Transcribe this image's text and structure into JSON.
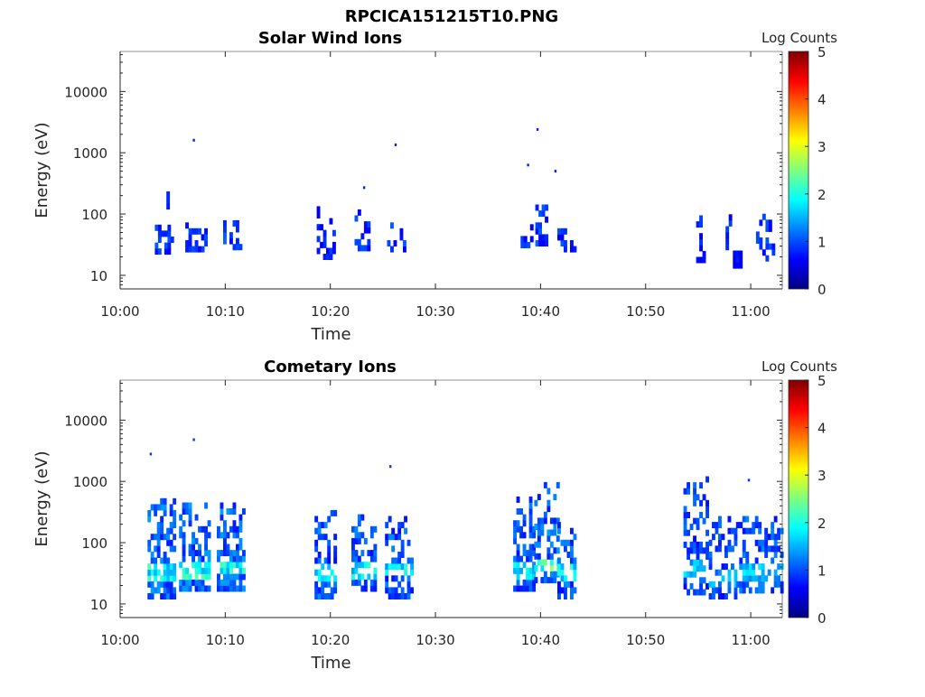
{
  "figure_title": "RPCICA151215T10.PNG",
  "colormap": [
    "#00007f",
    "#0000ff",
    "#007fff",
    "#00ffff",
    "#7fff7f",
    "#ffff00",
    "#ff7f00",
    "#ff0000",
    "#7f0000"
  ],
  "chart_data": [
    {
      "type": "heatmap",
      "title": "Solar Wind Ions",
      "xlabel": "Time",
      "ylabel": "Energy (eV)",
      "x_ticks": [
        "10:00",
        "10:10",
        "10:20",
        "10:30",
        "10:40",
        "10:50",
        "11:00"
      ],
      "xlim_minutes": [
        0,
        63
      ],
      "y_scale": "log",
      "ylim": [
        6,
        45000
      ],
      "y_ticks": [
        10,
        100,
        1000,
        10000
      ],
      "y_tick_labels": [
        "10",
        "100",
        "1000",
        "10000"
      ],
      "colorbar": {
        "label": "Log Counts",
        "range": [
          0,
          5
        ],
        "ticks": [
          "0",
          "1",
          "2",
          "3",
          "4",
          "5"
        ]
      },
      "clusters": [
        {
          "t": [
            3.3,
            4.8
          ],
          "e": [
            22,
            60
          ],
          "level": 0.9,
          "density": 0.75
        },
        {
          "t": [
            4.4,
            4.6
          ],
          "e": [
            120,
            190
          ],
          "level": 0.8,
          "density": 0.9
        },
        {
          "t": [
            6.2,
            8.0
          ],
          "e": [
            24,
            60
          ],
          "level": 0.9,
          "density": 0.7
        },
        {
          "t": [
            9.8,
            11.5
          ],
          "e": [
            26,
            75
          ],
          "level": 1.0,
          "density": 0.7
        },
        {
          "t": [
            18.7,
            20.5
          ],
          "e": [
            18,
            140
          ],
          "level": 0.8,
          "density": 0.45
        },
        {
          "t": [
            22.3,
            23.8
          ],
          "e": [
            25,
            110
          ],
          "level": 0.9,
          "density": 0.55
        },
        {
          "t": [
            25.4,
            27.0
          ],
          "e": [
            24,
            75
          ],
          "level": 0.9,
          "density": 0.55
        },
        {
          "t": [
            37.8,
            39.2
          ],
          "e": [
            28,
            70
          ],
          "level": 0.9,
          "density": 0.5
        },
        {
          "t": [
            39.5,
            40.6
          ],
          "e": [
            30,
            140
          ],
          "level": 1.0,
          "density": 0.5
        },
        {
          "t": [
            41.6,
            43.2
          ],
          "e": [
            24,
            55
          ],
          "level": 0.9,
          "density": 0.65
        },
        {
          "t": [
            54.8,
            55.5
          ],
          "e": [
            16,
            100
          ],
          "level": 0.8,
          "density": 0.5
        },
        {
          "t": [
            57.6,
            58.1
          ],
          "e": [
            26,
            90
          ],
          "level": 0.8,
          "density": 0.5
        },
        {
          "t": [
            58.3,
            59.0
          ],
          "e": [
            13,
            22
          ],
          "level": 0.7,
          "density": 0.9
        },
        {
          "t": [
            60.5,
            62.0
          ],
          "e": [
            17,
            90
          ],
          "level": 0.9,
          "density": 0.55
        }
      ],
      "points": [
        {
          "t": 7.0,
          "e": 1600,
          "level": 0.8
        },
        {
          "t": 26.2,
          "e": 1350,
          "level": 0.8
        },
        {
          "t": 39.7,
          "e": 2400,
          "level": 0.8
        },
        {
          "t": 38.8,
          "e": 630,
          "level": 0.8
        },
        {
          "t": 41.4,
          "e": 500,
          "level": 0.8
        },
        {
          "t": 23.2,
          "e": 270,
          "level": 0.8
        }
      ]
    },
    {
      "type": "heatmap",
      "title": "Cometary Ions",
      "xlabel": "Time",
      "ylabel": "Energy (eV)",
      "x_ticks": [
        "10:00",
        "10:10",
        "10:20",
        "10:30",
        "10:40",
        "10:50",
        "11:00"
      ],
      "xlim_minutes": [
        0,
        63
      ],
      "y_scale": "log",
      "ylim": [
        6,
        45000
      ],
      "y_ticks": [
        10,
        100,
        1000,
        10000
      ],
      "y_tick_labels": [
        "10",
        "100",
        "1000",
        "10000"
      ],
      "colorbar": {
        "label": "Log Counts",
        "range": [
          0,
          5
        ],
        "ticks": [
          "0",
          "1",
          "2",
          "3",
          "4",
          "5"
        ]
      },
      "clusters": [
        {
          "t": [
            2.6,
            5.0
          ],
          "e": [
            12,
            450
          ],
          "level": 1.2,
          "density": 0.8,
          "core": [
            22,
            45
          ],
          "core_level": 1.9
        },
        {
          "t": [
            5.6,
            8.6
          ],
          "e": [
            16,
            370
          ],
          "level": 1.2,
          "density": 0.8,
          "core": [
            22,
            45
          ],
          "core_level": 2.0
        },
        {
          "t": [
            9.2,
            11.8
          ],
          "e": [
            16,
            380
          ],
          "level": 1.2,
          "density": 0.8,
          "core": [
            28,
            45
          ],
          "core_level": 1.9
        },
        {
          "t": [
            18.5,
            20.6
          ],
          "e": [
            12,
            280
          ],
          "level": 1.1,
          "density": 0.65,
          "core": [
            20,
            40
          ],
          "core_level": 1.6
        },
        {
          "t": [
            22.0,
            24.2
          ],
          "e": [
            16,
            260
          ],
          "level": 1.1,
          "density": 0.65,
          "core": [
            24,
            45
          ],
          "core_level": 1.8
        },
        {
          "t": [
            25.2,
            27.8
          ],
          "e": [
            12,
            270
          ],
          "level": 1.1,
          "density": 0.65,
          "core": [
            28,
            45
          ],
          "core_level": 1.8
        },
        {
          "t": [
            37.4,
            39.4
          ],
          "e": [
            16,
            560
          ],
          "level": 1.1,
          "density": 0.65,
          "core": [
            20,
            45
          ],
          "core_level": 1.7
        },
        {
          "t": [
            39.4,
            41.6
          ],
          "e": [
            22,
            950
          ],
          "level": 1.2,
          "density": 0.6,
          "core": [
            30,
            45
          ],
          "core_level": 2.3
        },
        {
          "t": [
            41.6,
            43.3
          ],
          "e": [
            12,
            200
          ],
          "level": 1.1,
          "density": 0.6,
          "core": [
            22,
            40
          ],
          "core_level": 1.8
        },
        {
          "t": [
            53.6,
            55.8
          ],
          "e": [
            14,
            1100
          ],
          "level": 1.0,
          "density": 0.6,
          "core": [
            25,
            45
          ],
          "core_level": 1.6
        },
        {
          "t": [
            56.0,
            58.6
          ],
          "e": [
            12,
            250
          ],
          "level": 1.0,
          "density": 0.6,
          "core": [
            15,
            35
          ],
          "core_level": 1.4
        },
        {
          "t": [
            58.6,
            63.0
          ],
          "e": [
            15,
            250
          ],
          "level": 1.1,
          "density": 0.6,
          "core": [
            20,
            40
          ],
          "core_level": 1.6
        }
      ],
      "points": [
        {
          "t": 2.9,
          "e": 2800,
          "level": 0.9
        },
        {
          "t": 7.0,
          "e": 4800,
          "level": 0.9
        },
        {
          "t": 25.7,
          "e": 1750,
          "level": 0.9
        },
        {
          "t": 59.8,
          "e": 1050,
          "level": 0.9
        }
      ]
    }
  ]
}
